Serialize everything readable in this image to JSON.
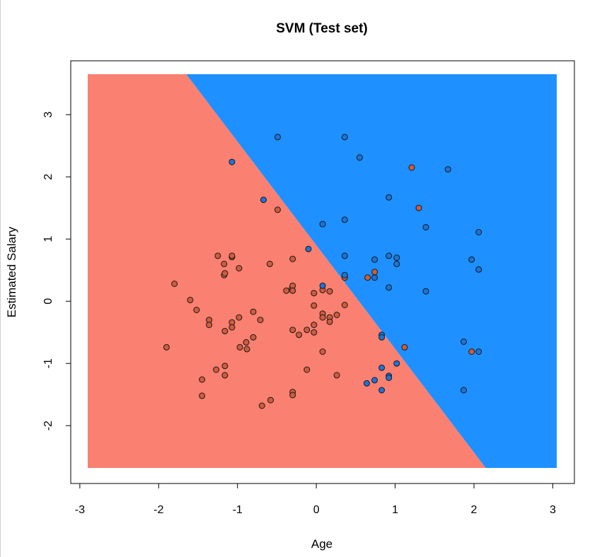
{
  "chart_data": {
    "type": "scatter",
    "title": "SVM (Test set)",
    "xlabel": "Age",
    "ylabel": "Estimated Salary",
    "xlim": [
      -2.9,
      3.05
    ],
    "ylim": [
      -2.68,
      3.65
    ],
    "x_ticks": [
      "-3",
      "-2",
      "-1",
      "0",
      "1",
      "2",
      "3"
    ],
    "y_ticks": [
      "-2",
      "-1",
      "0",
      "1",
      "2",
      "3"
    ],
    "grid": false,
    "legend": "none",
    "region_colors": {
      "class_0": "#FA8072",
      "class_1": "#1E90FF"
    },
    "point_colors": {
      "class_0": "#CD5C3E",
      "class_1": "#1C74D6"
    },
    "decision_boundary": [
      [
        -1.65,
        3.65
      ],
      [
        2.15,
        -2.68
      ]
    ],
    "series": [
      {
        "class": 0,
        "points": [
          [
            -1.9,
            -0.74
          ],
          [
            -1.8,
            0.28
          ],
          [
            -1.6,
            0.02
          ],
          [
            -1.52,
            -0.14
          ],
          [
            -1.45,
            -1.26
          ],
          [
            -1.45,
            -1.52
          ],
          [
            -1.36,
            -0.3
          ],
          [
            -1.36,
            -0.38
          ],
          [
            -1.27,
            -1.1
          ],
          [
            -1.25,
            0.73
          ],
          [
            -1.17,
            0.6
          ],
          [
            -1.17,
            0.42
          ],
          [
            -1.16,
            0.45
          ],
          [
            -1.16,
            -0.48
          ],
          [
            -1.16,
            -1.04
          ],
          [
            -1.16,
            -1.19
          ],
          [
            -1.07,
            0.71
          ],
          [
            -1.07,
            0.73
          ],
          [
            -1.07,
            -0.34
          ],
          [
            -1.07,
            -0.42
          ],
          [
            -0.98,
            0.53
          ],
          [
            -0.98,
            -0.26
          ],
          [
            -0.97,
            -0.74
          ],
          [
            -0.89,
            -0.66
          ],
          [
            -0.88,
            -0.77
          ],
          [
            -0.8,
            -0.17
          ],
          [
            -0.8,
            -0.58
          ],
          [
            -0.71,
            -0.3
          ],
          [
            -0.69,
            -1.68
          ],
          [
            -0.59,
            0.6
          ],
          [
            -0.58,
            -1.59
          ],
          [
            -0.49,
            1.47
          ],
          [
            -0.38,
            0.17
          ],
          [
            -0.31,
            0.2
          ],
          [
            -0.3,
            0.68
          ],
          [
            -0.3,
            0.25
          ],
          [
            -0.3,
            0.17
          ],
          [
            -0.3,
            -0.46
          ],
          [
            -0.3,
            -1.46
          ],
          [
            -0.3,
            -1.51
          ],
          [
            -0.22,
            -0.54
          ],
          [
            -0.12,
            -0.46
          ],
          [
            -0.12,
            -1.1
          ],
          [
            -0.03,
            0.13
          ],
          [
            -0.03,
            -0.07
          ],
          [
            -0.03,
            -0.38
          ],
          [
            -0.03,
            -0.5
          ],
          [
            0.08,
            0.18
          ],
          [
            0.08,
            -0.2
          ],
          [
            0.08,
            -0.26
          ],
          [
            0.08,
            -0.81
          ],
          [
            0.17,
            0.16
          ],
          [
            0.17,
            -0.26
          ],
          [
            0.17,
            -0.33
          ],
          [
            0.26,
            -0.22
          ],
          [
            0.26,
            -1.19
          ],
          [
            0.36,
            0.38
          ],
          [
            0.36,
            -0.06
          ],
          [
            0.65,
            0.38
          ],
          [
            0.74,
            0.47
          ],
          [
            1.12,
            -0.74
          ],
          [
            1.21,
            2.15
          ],
          [
            1.3,
            1.5
          ],
          [
            1.97,
            -0.81
          ]
        ]
      },
      {
        "class": 1,
        "points": [
          [
            -1.07,
            2.24
          ],
          [
            -0.67,
            1.63
          ],
          [
            -0.49,
            2.64
          ],
          [
            -0.1,
            0.84
          ],
          [
            0.08,
            1.24
          ],
          [
            0.08,
            0.25
          ],
          [
            0.36,
            2.64
          ],
          [
            0.36,
            1.31
          ],
          [
            0.36,
            0.73
          ],
          [
            0.36,
            0.42
          ],
          [
            0.55,
            2.31
          ],
          [
            0.64,
            -1.32
          ],
          [
            0.74,
            0.67
          ],
          [
            0.74,
            0.38
          ],
          [
            0.74,
            -1.27
          ],
          [
            0.83,
            -0.54
          ],
          [
            0.83,
            -0.58
          ],
          [
            0.83,
            -1.07
          ],
          [
            0.83,
            -1.43
          ],
          [
            0.92,
            1.67
          ],
          [
            0.92,
            0.73
          ],
          [
            0.92,
            0.22
          ],
          [
            0.92,
            -1.2
          ],
          [
            0.92,
            -1.23
          ],
          [
            1.02,
            0.7
          ],
          [
            1.02,
            0.6
          ],
          [
            1.02,
            -1.0
          ],
          [
            1.39,
            1.19
          ],
          [
            1.39,
            0.16
          ],
          [
            1.67,
            2.12
          ],
          [
            1.87,
            -0.65
          ],
          [
            1.87,
            -1.43
          ],
          [
            1.97,
            0.67
          ],
          [
            2.06,
            1.11
          ],
          [
            2.06,
            0.51
          ],
          [
            2.06,
            -0.81
          ]
        ]
      }
    ]
  }
}
